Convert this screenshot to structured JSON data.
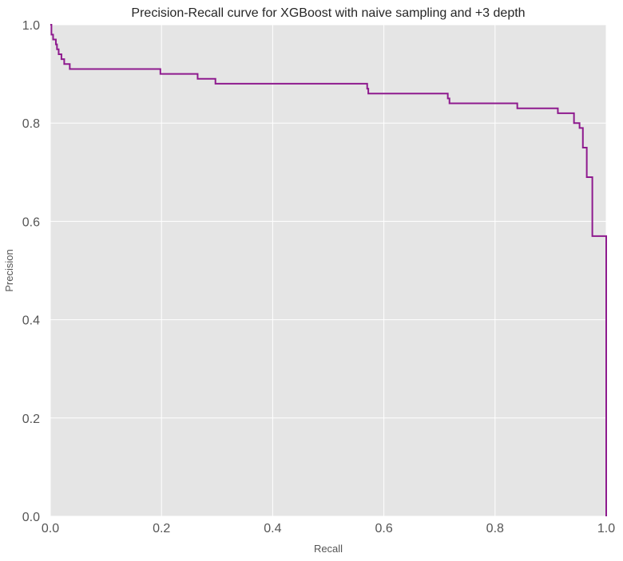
{
  "chart_data": {
    "type": "line",
    "title": "Precision-Recall curve for XGBoost with naive sampling and +3 depth",
    "xlabel": "Recall",
    "ylabel": "Precision",
    "xlim": [
      0.0,
      1.0
    ],
    "ylim": [
      0.0,
      1.0
    ],
    "xticks": [
      0.0,
      0.2,
      0.4,
      0.6,
      0.8,
      1.0
    ],
    "yticks": [
      0.0,
      0.2,
      0.4,
      0.6,
      0.8,
      1.0
    ],
    "xtick_labels": [
      "0.0",
      "0.2",
      "0.4",
      "0.6",
      "0.8",
      "1.0"
    ],
    "ytick_labels": [
      "0.0",
      "0.2",
      "0.4",
      "0.6",
      "0.8",
      "1.0"
    ],
    "grid": true,
    "background_color": "#e5e5e5",
    "grid_color": "#ffffff",
    "series": [
      {
        "color": "#8e1a8e",
        "drawstyle": "steps",
        "x": [
          0.0,
          0.002,
          0.002,
          0.005,
          0.005,
          0.01,
          0.01,
          0.012,
          0.012,
          0.015,
          0.015,
          0.02,
          0.02,
          0.025,
          0.025,
          0.035,
          0.035,
          0.198,
          0.198,
          0.265,
          0.265,
          0.297,
          0.297,
          0.57,
          0.57,
          0.572,
          0.572,
          0.715,
          0.715,
          0.718,
          0.718,
          0.84,
          0.84,
          0.913,
          0.913,
          0.942,
          0.942,
          0.952,
          0.952,
          0.958,
          0.958,
          0.965,
          0.965,
          0.975,
          0.975,
          0.988,
          0.988,
          1.0,
          1.0
        ],
        "y": [
          1.0,
          1.0,
          0.98,
          0.98,
          0.97,
          0.97,
          0.96,
          0.96,
          0.95,
          0.95,
          0.94,
          0.94,
          0.93,
          0.93,
          0.92,
          0.92,
          0.91,
          0.91,
          0.9,
          0.9,
          0.89,
          0.89,
          0.88,
          0.88,
          0.87,
          0.87,
          0.86,
          0.86,
          0.85,
          0.85,
          0.84,
          0.84,
          0.83,
          0.83,
          0.82,
          0.82,
          0.8,
          0.8,
          0.79,
          0.79,
          0.75,
          0.75,
          0.69,
          0.69,
          0.57,
          0.57,
          0.57,
          0.57,
          0.0
        ]
      }
    ]
  }
}
